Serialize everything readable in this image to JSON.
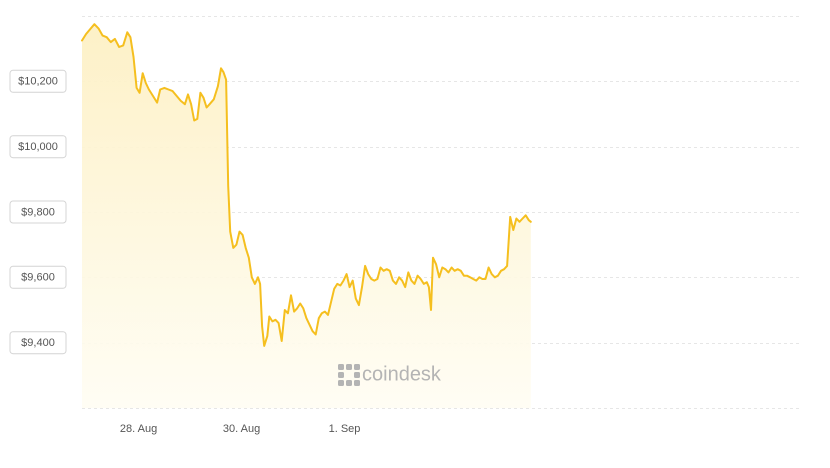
{
  "chart_data": {
    "type": "area",
    "title": "",
    "xlabel": "",
    "ylabel": "",
    "ylim": [
      9200,
      10400
    ],
    "yticks": [
      {
        "value": 9400,
        "label": "$9,400"
      },
      {
        "value": 9600,
        "label": "$9,600"
      },
      {
        "value": 9800,
        "label": "$9,800"
      },
      {
        "value": 10000,
        "label": "$10,000"
      },
      {
        "value": 10200,
        "label": "$10,200"
      }
    ],
    "xrange_days": [
      26.9,
      40.85
    ],
    "xticks": [
      {
        "value": 28,
        "label": "28. Aug"
      },
      {
        "value": 30,
        "label": "30. Aug"
      },
      {
        "value": 32,
        "label": "1. Sep"
      }
    ],
    "grid": true,
    "legend": "none",
    "series": [
      {
        "color": "#f5bf1f",
        "fill_top": "#fdf0c4",
        "fill_bottom": "#fffdf3",
        "points": [
          [
            26.9,
            10325
          ],
          [
            26.98,
            10345
          ],
          [
            27.06,
            10360
          ],
          [
            27.14,
            10375
          ],
          [
            27.22,
            10362
          ],
          [
            27.3,
            10340
          ],
          [
            27.38,
            10335
          ],
          [
            27.46,
            10320
          ],
          [
            27.54,
            10330
          ],
          [
            27.62,
            10305
          ],
          [
            27.7,
            10310
          ],
          [
            27.78,
            10350
          ],
          [
            27.84,
            10335
          ],
          [
            27.9,
            10275
          ],
          [
            27.96,
            10180
          ],
          [
            28.02,
            10165
          ],
          [
            28.08,
            10225
          ],
          [
            28.14,
            10195
          ],
          [
            28.2,
            10175
          ],
          [
            28.28,
            10155
          ],
          [
            28.36,
            10135
          ],
          [
            28.42,
            10175
          ],
          [
            28.5,
            10180
          ],
          [
            28.58,
            10175
          ],
          [
            28.66,
            10170
          ],
          [
            28.74,
            10155
          ],
          [
            28.82,
            10140
          ],
          [
            28.9,
            10130
          ],
          [
            28.96,
            10160
          ],
          [
            29.02,
            10130
          ],
          [
            29.08,
            10080
          ],
          [
            29.14,
            10085
          ],
          [
            29.2,
            10165
          ],
          [
            29.26,
            10150
          ],
          [
            29.32,
            10120
          ],
          [
            29.38,
            10130
          ],
          [
            29.46,
            10145
          ],
          [
            29.54,
            10185
          ],
          [
            29.6,
            10240
          ],
          [
            29.65,
            10228
          ],
          [
            29.7,
            10205
          ],
          [
            29.74,
            9880
          ],
          [
            29.78,
            9740
          ],
          [
            29.84,
            9690
          ],
          [
            29.9,
            9700
          ],
          [
            29.96,
            9740
          ],
          [
            30.02,
            9730
          ],
          [
            30.08,
            9690
          ],
          [
            30.14,
            9660
          ],
          [
            30.2,
            9600
          ],
          [
            30.26,
            9580
          ],
          [
            30.32,
            9600
          ],
          [
            30.36,
            9580
          ],
          [
            30.4,
            9450
          ],
          [
            30.44,
            9390
          ],
          [
            30.5,
            9420
          ],
          [
            30.54,
            9480
          ],
          [
            30.6,
            9465
          ],
          [
            30.66,
            9470
          ],
          [
            30.72,
            9460
          ],
          [
            30.78,
            9405
          ],
          [
            30.84,
            9500
          ],
          [
            30.9,
            9490
          ],
          [
            30.96,
            9545
          ],
          [
            31.02,
            9495
          ],
          [
            31.08,
            9505
          ],
          [
            31.14,
            9520
          ],
          [
            31.2,
            9505
          ],
          [
            31.26,
            9475
          ],
          [
            31.32,
            9455
          ],
          [
            31.38,
            9435
          ],
          [
            31.44,
            9425
          ],
          [
            31.5,
            9475
          ],
          [
            31.56,
            9490
          ],
          [
            31.62,
            9495
          ],
          [
            31.68,
            9485
          ],
          [
            31.74,
            9525
          ],
          [
            31.8,
            9565
          ],
          [
            31.86,
            9580
          ],
          [
            31.92,
            9575
          ],
          [
            31.98,
            9590
          ],
          [
            32.04,
            9610
          ],
          [
            32.1,
            9570
          ],
          [
            32.16,
            9590
          ],
          [
            32.22,
            9535
          ],
          [
            32.28,
            9515
          ],
          [
            32.34,
            9570
          ],
          [
            32.4,
            9635
          ],
          [
            32.46,
            9610
          ],
          [
            32.52,
            9595
          ],
          [
            32.58,
            9590
          ],
          [
            32.64,
            9595
          ],
          [
            32.7,
            9630
          ],
          [
            32.76,
            9620
          ],
          [
            32.82,
            9625
          ],
          [
            32.88,
            9620
          ],
          [
            32.94,
            9590
          ],
          [
            33.0,
            9580
          ],
          [
            33.06,
            9600
          ],
          [
            33.12,
            9590
          ],
          [
            33.18,
            9570
          ],
          [
            33.24,
            9615
          ],
          [
            33.3,
            9590
          ],
          [
            33.36,
            9580
          ],
          [
            33.42,
            9605
          ],
          [
            33.48,
            9595
          ],
          [
            33.54,
            9580
          ],
          [
            33.6,
            9585
          ],
          [
            33.64,
            9570
          ],
          [
            33.68,
            9500
          ],
          [
            33.72,
            9660
          ],
          [
            33.78,
            9640
          ],
          [
            33.84,
            9600
          ],
          [
            33.9,
            9630
          ],
          [
            33.96,
            9625
          ],
          [
            34.02,
            9615
          ],
          [
            34.08,
            9630
          ],
          [
            34.14,
            9620
          ],
          [
            34.2,
            9625
          ],
          [
            34.26,
            9620
          ],
          [
            34.32,
            9605
          ],
          [
            34.38,
            9605
          ],
          [
            34.44,
            9600
          ],
          [
            34.5,
            9595
          ],
          [
            34.56,
            9590
          ],
          [
            34.62,
            9600
          ],
          [
            34.68,
            9595
          ],
          [
            34.74,
            9595
          ],
          [
            34.8,
            9630
          ],
          [
            34.86,
            9610
          ],
          [
            34.92,
            9600
          ],
          [
            34.98,
            9605
          ],
          [
            35.04,
            9620
          ],
          [
            35.1,
            9625
          ],
          [
            35.16,
            9635
          ],
          [
            35.22,
            9785
          ],
          [
            35.28,
            9745
          ],
          [
            35.34,
            9780
          ],
          [
            35.4,
            9770
          ],
          [
            35.46,
            9780
          ],
          [
            35.52,
            9790
          ],
          [
            35.58,
            9775
          ],
          [
            35.62,
            9770
          ]
        ]
      }
    ],
    "watermark": {
      "icon": "coindesk-logo-icon",
      "text": "coindesk"
    }
  }
}
